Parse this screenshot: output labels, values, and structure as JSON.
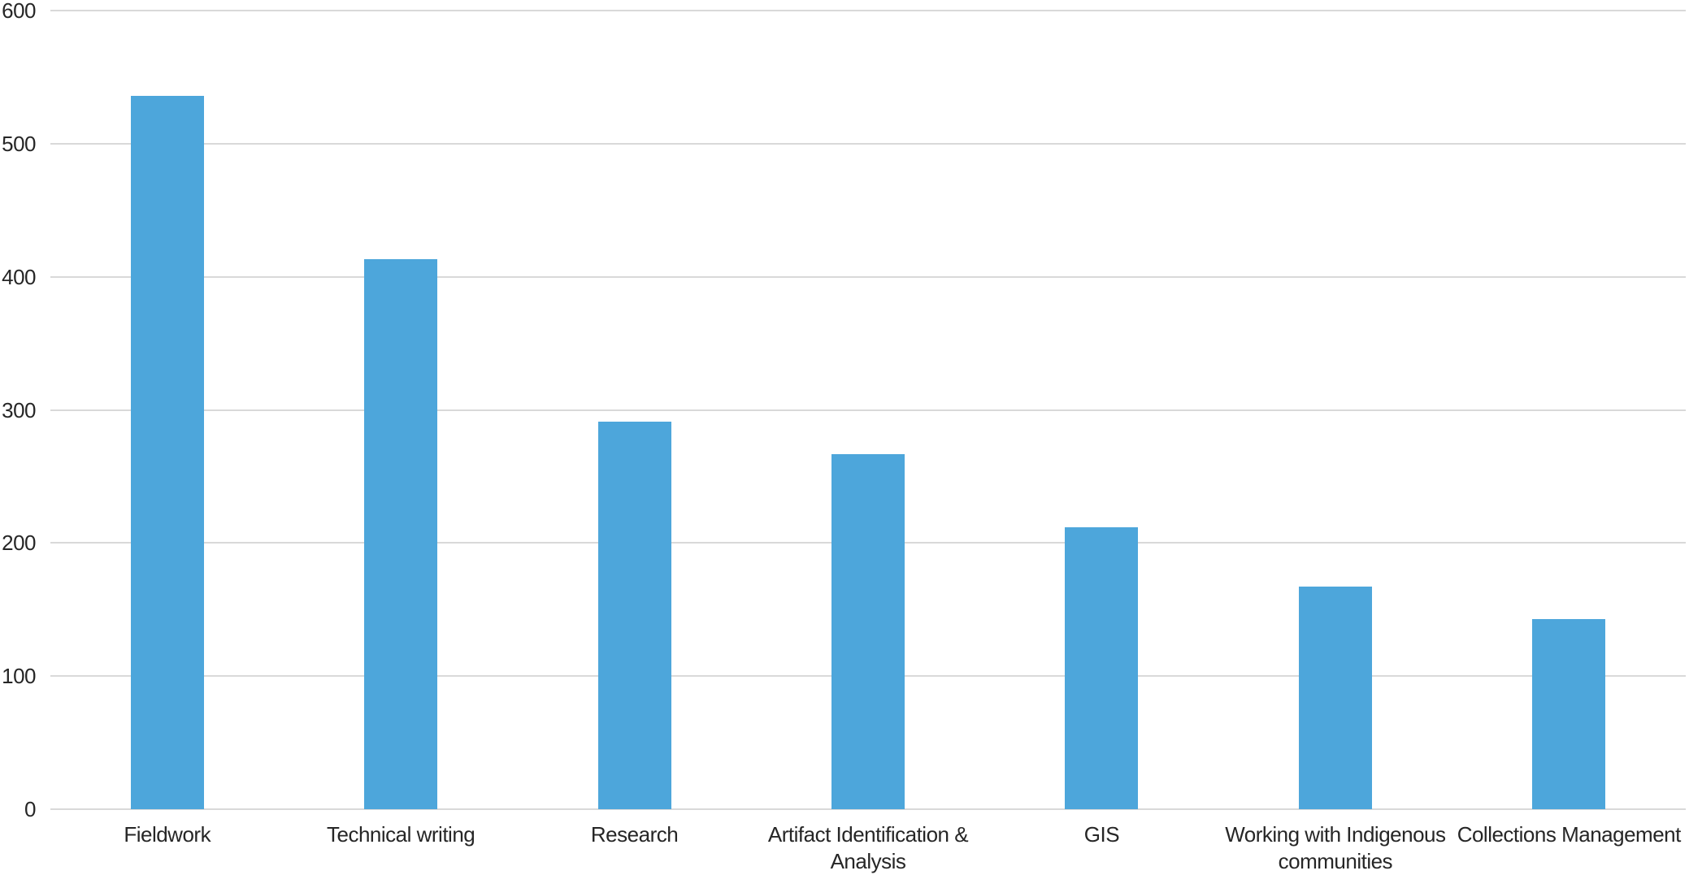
{
  "chart_data": {
    "type": "bar",
    "title": "",
    "xlabel": "",
    "ylabel": "",
    "categories": [
      "Fieldwork",
      "Technical writing",
      "Research",
      "Artifact Identification &\nAnalysis",
      "GIS",
      "Working with Indigenous\ncommunities",
      "Collections Management"
    ],
    "values": [
      536,
      413,
      291,
      267,
      212,
      167,
      143
    ],
    "ylim": [
      0,
      600
    ],
    "yticks": [
      0,
      100,
      200,
      300,
      400,
      500,
      600
    ],
    "grid": true,
    "legend": false,
    "colors": {
      "bar": "#4DA6DB",
      "gridline": "#D9D9D9",
      "axis_line": "#D9D9D9",
      "label_text": "#262626",
      "background": "#FFFFFF"
    }
  }
}
